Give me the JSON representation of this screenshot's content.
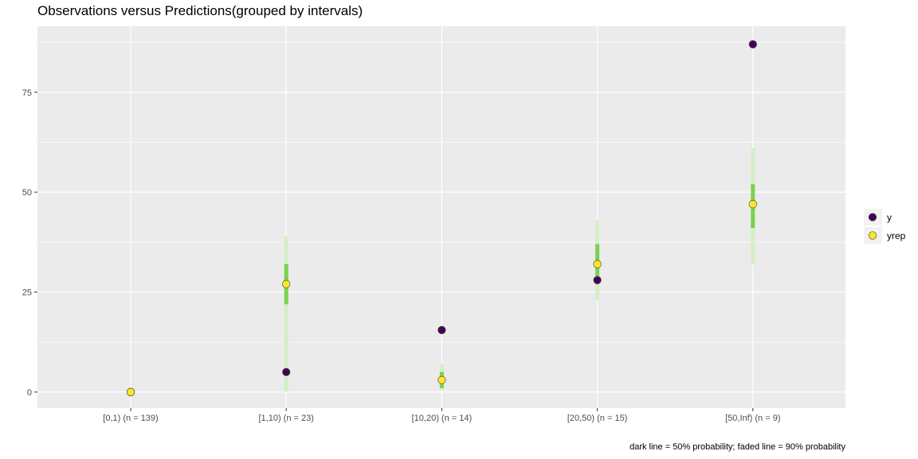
{
  "chart_data": {
    "type": "scatter",
    "title": "Observations versus Predictions(grouped by intervals)",
    "caption": "dark line = 50% probability; faded line = 90% probability",
    "xlabel": "",
    "ylabel": "",
    "categories": [
      "[0,1) (n = 139)",
      "[1,10) (n = 23)",
      "[10,20) (n = 14)",
      "[20,50) (n = 15)",
      "[50,Inf) (n = 9)"
    ],
    "ylim": [
      -4,
      91.5
    ],
    "yticks": [
      0,
      25,
      50,
      75
    ],
    "grid": true,
    "legend_position": "right",
    "series": [
      {
        "name": "y",
        "values": [
          0,
          5,
          15.5,
          28,
          87
        ],
        "color": "#440154"
      },
      {
        "name": "yrep",
        "values": [
          0,
          27,
          3,
          32,
          47
        ],
        "color": "#FDE725"
      }
    ],
    "intervals_50": [
      [
        0,
        0
      ],
      [
        22,
        32
      ],
      [
        1,
        5
      ],
      [
        27,
        37
      ],
      [
        41,
        52
      ]
    ],
    "intervals_90": [
      [
        0,
        0
      ],
      [
        0,
        39
      ],
      [
        0.5,
        7
      ],
      [
        23,
        43
      ],
      [
        32,
        61
      ]
    ],
    "interval_colors": {
      "inner": "#7AD151",
      "outer": "#D3EFC6"
    }
  }
}
